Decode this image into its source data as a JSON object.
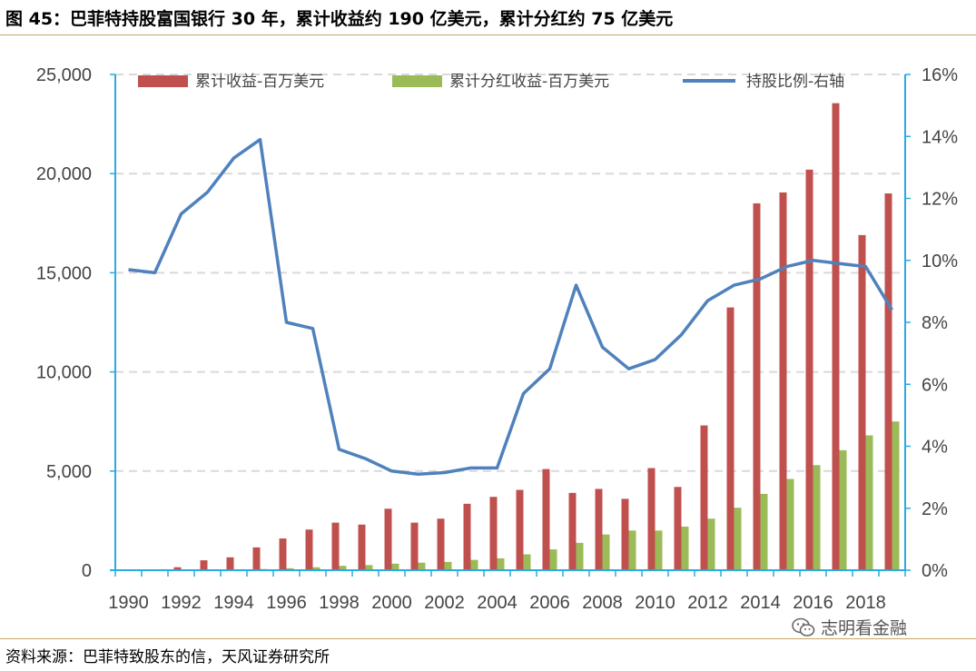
{
  "title": "图 45：巴菲特持股富国银行 30 年，累计收益约 190 亿美元，累计分红约 75 亿美元",
  "source": "资料来源：巴菲特致股东的信，天风证券研究所",
  "watermark": "志明看金融",
  "colors": {
    "income": "#c0504d",
    "dividend": "#9bbb59",
    "ratio": "#4f81bd",
    "axis": "#29abe2",
    "grid": "#d9d9d9",
    "rule": "#c9a56b"
  },
  "chart_data": {
    "type": "bar",
    "x": [
      1990,
      1991,
      1992,
      1993,
      1994,
      1995,
      1996,
      1997,
      1998,
      1999,
      2000,
      2001,
      2002,
      2003,
      2004,
      2005,
      2006,
      2007,
      2008,
      2009,
      2010,
      2011,
      2012,
      2013,
      2014,
      2015,
      2016,
      2017,
      2018,
      2019
    ],
    "x_tick_labels": [
      "1990",
      "1992",
      "1994",
      "1996",
      "1998",
      "2000",
      "2002",
      "2004",
      "2006",
      "2008",
      "2010",
      "2012",
      "2014",
      "2016",
      "2018"
    ],
    "series": [
      {
        "name": "累计收益-百万美元",
        "type": "bar",
        "axis": "left",
        "values": [
          0,
          0,
          150,
          500,
          650,
          1150,
          1600,
          2050,
          2400,
          2300,
          3100,
          2400,
          2600,
          3350,
          3700,
          4050,
          5100,
          3900,
          4100,
          3600,
          5150,
          4200,
          7300,
          13250,
          18500,
          19050,
          20200,
          23550,
          16900,
          19000
        ]
      },
      {
        "name": "累计分红收益-百万美元",
        "type": "bar",
        "axis": "left",
        "values": [
          0,
          0,
          0,
          0,
          30,
          60,
          100,
          150,
          220,
          260,
          330,
          380,
          420,
          520,
          600,
          800,
          1050,
          1380,
          1800,
          2000,
          2000,
          2200,
          2600,
          3150,
          3850,
          4600,
          5300,
          6050,
          6800,
          7500
        ]
      },
      {
        "name": "持股比例-右轴",
        "type": "line",
        "axis": "right",
        "values": [
          9.7,
          9.6,
          11.5,
          12.2,
          13.3,
          13.9,
          8.0,
          7.8,
          3.9,
          3.6,
          3.2,
          3.1,
          3.15,
          3.3,
          3.3,
          5.7,
          6.5,
          9.2,
          7.2,
          6.5,
          6.8,
          7.6,
          8.7,
          9.2,
          9.4,
          9.8,
          10.0,
          9.9,
          9.8,
          8.4
        ]
      }
    ],
    "ylim_left": [
      0,
      25000
    ],
    "yticks_left": [
      "0",
      "5,000",
      "10,000",
      "15,000",
      "20,000",
      "25,000"
    ],
    "ylim_right": [
      0,
      16
    ],
    "yticks_right": [
      "0%",
      "2%",
      "4%",
      "6%",
      "8%",
      "10%",
      "12%",
      "14%",
      "16%"
    ],
    "grid": true,
    "legend": "top"
  }
}
